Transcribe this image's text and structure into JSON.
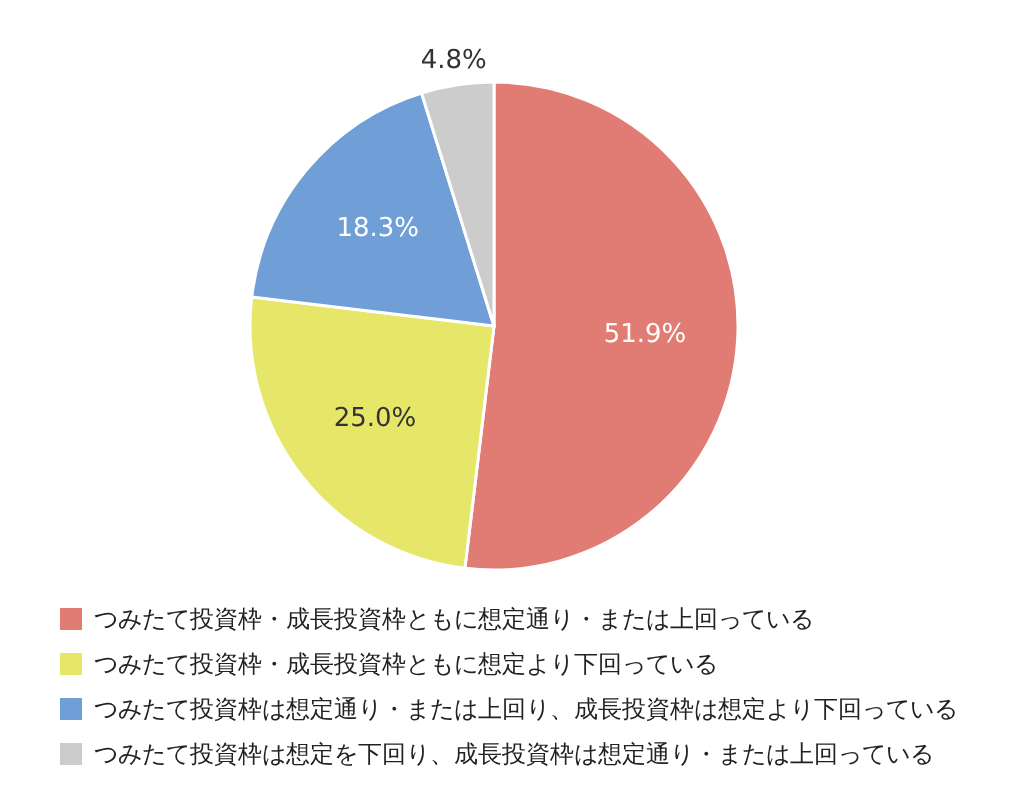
{
  "chart_data": {
    "type": "pie",
    "categories": [
      "つみたて投資枠・成長投資枠ともに想定通り・または上回っている",
      "つみたて投資枠・成長投資枠ともに想定より下回っている",
      "つみたて投資枠は想定通り・または上回り、成長投資枠は想定より下回っている",
      "つみたて投資枠は想定を下回り、成長投資枠は想定通り・または上回っている"
    ],
    "values": [
      51.9,
      25.0,
      18.3,
      4.8
    ],
    "colors": [
      "#e07c73",
      "#e6e769",
      "#6f9fd6",
      "#cccccc"
    ],
    "value_labels": [
      "51.9%",
      "25.0%",
      "18.3%",
      "4.8%"
    ],
    "legend": "bottom"
  }
}
